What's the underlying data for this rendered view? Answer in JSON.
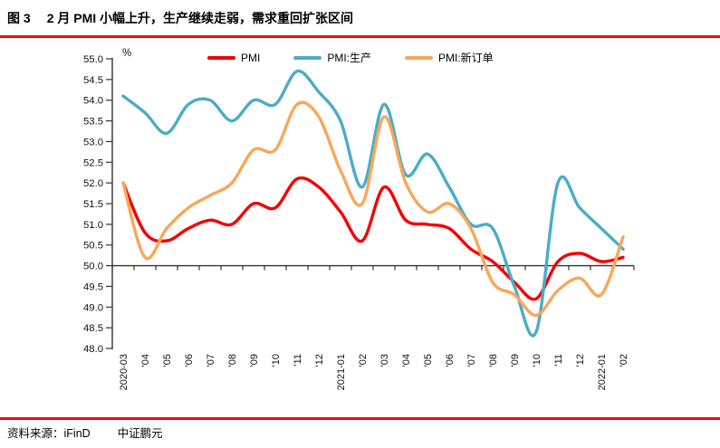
{
  "header": {
    "figure_label": "图 3",
    "figure_title": "2 月 PMI 小幅上升，生产继续走弱，需求重回扩张区间"
  },
  "footer": {
    "source": "资料来源：iFinD",
    "organization": "中证鹏元"
  },
  "colors": {
    "rule_red": "#FE0000",
    "axis": "#333333",
    "text": "#000000"
  },
  "chart_data": {
    "type": "line",
    "title": "2 月 PMI 小幅上升，生产继续走弱，需求重回扩张区间",
    "unit": "%",
    "legend_position": "top",
    "grid": false,
    "ylim": [
      48.0,
      55.0
    ],
    "ytick_step": 0.5,
    "yticks": [
      "55.0",
      "54.5",
      "54.0",
      "53.5",
      "53.0",
      "52.5",
      "52.0",
      "51.5",
      "51.0",
      "50.5",
      "50.0",
      "49.5",
      "49.0",
      "48.5",
      "48.0"
    ],
    "baseline": 50.0,
    "xlabel_rotation": -90,
    "categories": [
      "2020-03",
      "'04",
      "'05",
      "'06",
      "'07",
      "'08",
      "'09",
      "'10",
      "'11",
      "'12",
      "2021-01",
      "'02",
      "'03",
      "'04",
      "'05",
      "'06",
      "'07",
      "'08",
      "'09",
      "'10",
      "'11",
      "'12",
      "2022-01",
      "'02"
    ],
    "series": [
      {
        "id": "pmi",
        "name": "PMI",
        "color": "#F40000",
        "values": [
          52.0,
          50.8,
          50.6,
          50.9,
          51.1,
          51.0,
          51.5,
          51.4,
          52.1,
          51.9,
          51.3,
          50.6,
          51.9,
          51.1,
          51.0,
          50.9,
          50.4,
          50.1,
          49.6,
          49.2,
          50.1,
          50.3,
          50.1,
          50.2
        ]
      },
      {
        "id": "pmi-production",
        "name": "PMI:生产",
        "color": "#4BACC6",
        "values": [
          54.1,
          53.7,
          53.2,
          53.9,
          54.0,
          53.5,
          54.0,
          53.9,
          54.7,
          54.2,
          53.5,
          51.9,
          53.9,
          52.2,
          52.7,
          51.9,
          51.0,
          50.9,
          49.5,
          48.4,
          52.0,
          51.4,
          50.9,
          50.4
        ]
      },
      {
        "id": "pmi-new-orders",
        "name": "PMI:新订单",
        "color": "#F9A65A",
        "values": [
          52.0,
          50.2,
          50.9,
          51.4,
          51.7,
          52.0,
          52.8,
          52.8,
          53.9,
          53.6,
          52.3,
          51.5,
          53.6,
          52.0,
          51.3,
          51.5,
          50.9,
          49.6,
          49.3,
          48.8,
          49.4,
          49.7,
          49.3,
          50.7
        ]
      }
    ]
  }
}
